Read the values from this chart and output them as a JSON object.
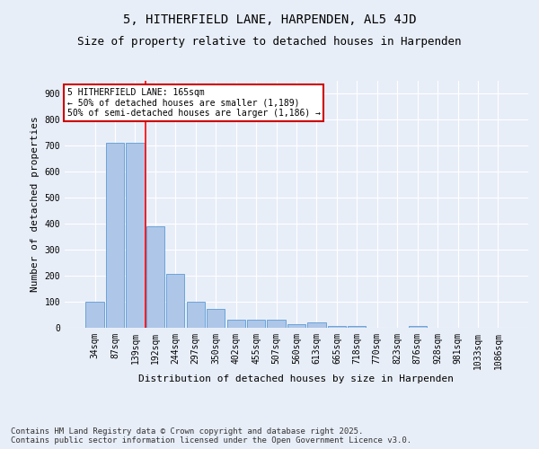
{
  "title1": "5, HITHERFIELD LANE, HARPENDEN, AL5 4JD",
  "title2": "Size of property relative to detached houses in Harpenden",
  "xlabel": "Distribution of detached houses by size in Harpenden",
  "ylabel": "Number of detached properties",
  "categories": [
    "34sqm",
    "87sqm",
    "139sqm",
    "192sqm",
    "244sqm",
    "297sqm",
    "350sqm",
    "402sqm",
    "455sqm",
    "507sqm",
    "560sqm",
    "613sqm",
    "665sqm",
    "718sqm",
    "770sqm",
    "823sqm",
    "876sqm",
    "928sqm",
    "981sqm",
    "1033sqm",
    "1086sqm"
  ],
  "values": [
    100,
    710,
    710,
    390,
    207,
    100,
    72,
    30,
    32,
    32,
    15,
    20,
    8,
    7,
    0,
    0,
    8,
    0,
    0,
    0,
    0
  ],
  "bar_color": "#aec6e8",
  "bar_edge_color": "#5b9bd5",
  "bg_color": "#e8eef8",
  "grid_color": "#ffffff",
  "red_line_x": 2.5,
  "annotation_title": "5 HITHERFIELD LANE: 165sqm",
  "annotation_line1": "← 50% of detached houses are smaller (1,189)",
  "annotation_line2": "50% of semi-detached houses are larger (1,186) →",
  "annotation_box_color": "#ffffff",
  "annotation_box_edge_color": "#cc0000",
  "ylim": [
    0,
    950
  ],
  "yticks": [
    0,
    100,
    200,
    300,
    400,
    500,
    600,
    700,
    800,
    900
  ],
  "footer": "Contains HM Land Registry data © Crown copyright and database right 2025.\nContains public sector information licensed under the Open Government Licence v3.0.",
  "title_fontsize": 10,
  "subtitle_fontsize": 9,
  "axis_label_fontsize": 8,
  "tick_fontsize": 7,
  "footer_fontsize": 6.5,
  "ann_fontsize": 7
}
